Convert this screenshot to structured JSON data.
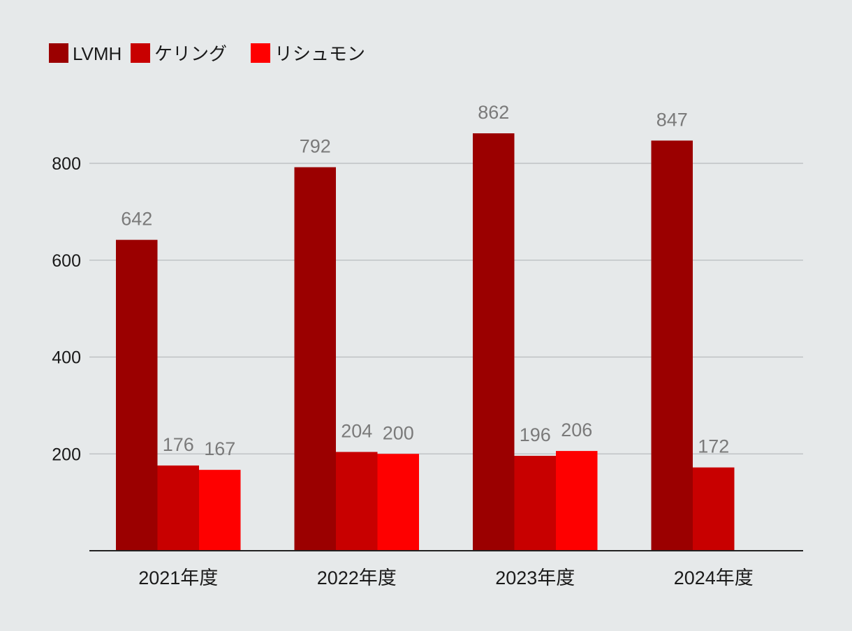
{
  "chart_data": {
    "type": "bar",
    "title": "",
    "xlabel": "",
    "ylabel": "",
    "categories": [
      "2021年度",
      "2022年度",
      "2023年度",
      "2024年度"
    ],
    "series": [
      {
        "name": "LVMH",
        "color": "#9b0000",
        "values": [
          642,
          792,
          862,
          847
        ]
      },
      {
        "name": "ケリング",
        "color": "#c80000",
        "values": [
          176,
          204,
          196,
          172
        ]
      },
      {
        "name": "リシュモン",
        "color": "#fe0000",
        "values": [
          167,
          200,
          206,
          null
        ]
      }
    ],
    "ylim": [
      0,
      800
    ],
    "yticks": [
      200,
      400,
      600,
      800
    ],
    "grid": true,
    "legend_position": "top-left",
    "data_labels": true,
    "colors": {
      "background": "#e6e9ea",
      "gridline": "#b8bcbe",
      "axis": "#222222",
      "value_label": "#7a7a7a"
    }
  }
}
